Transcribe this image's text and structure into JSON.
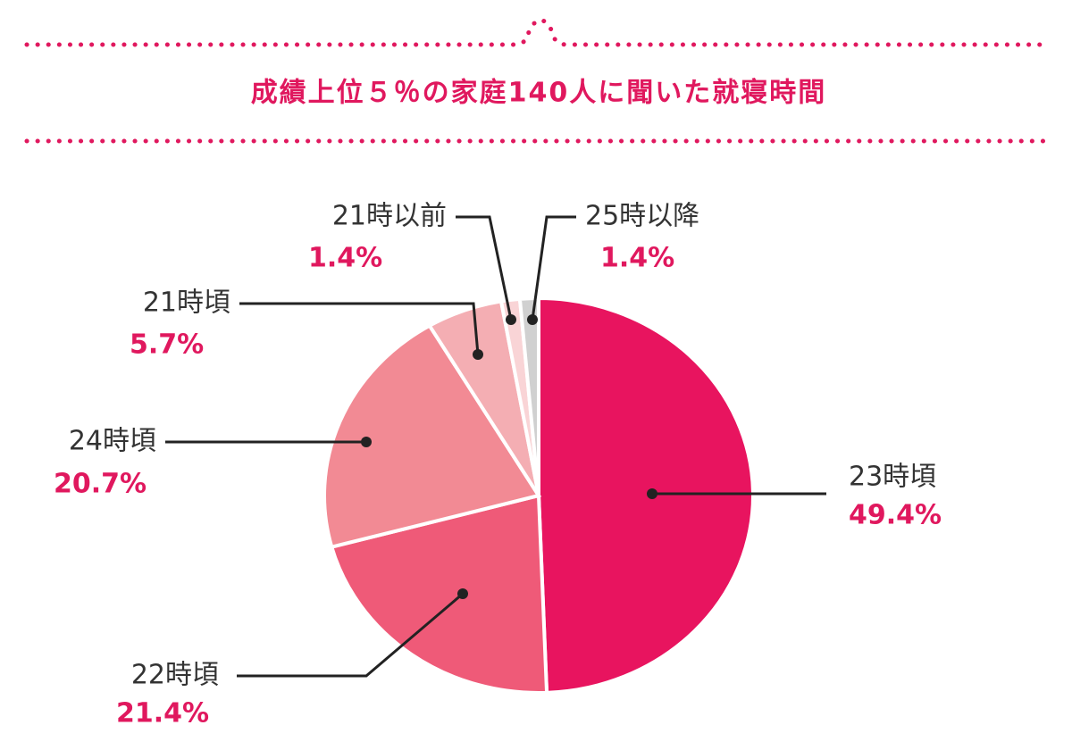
{
  "chart_data": {
    "type": "pie",
    "title": "成績上位５％の家庭140人に聞いた就寝時間",
    "categories": [
      "23時頃",
      "22時頃",
      "24時頃",
      "21時頃",
      "21時以前",
      "25時以降"
    ],
    "values": [
      49.4,
      21.4,
      20.7,
      5.7,
      1.4,
      1.4
    ],
    "value_labels": [
      "49.4%",
      "21.4%",
      "20.7%",
      "5.7%",
      "1.4%",
      "1.4%"
    ],
    "colors": [
      "#e8145f",
      "#ef5a78",
      "#f28a94",
      "#f4aeb3",
      "#f9d4d6",
      "#d0d0d0"
    ]
  }
}
